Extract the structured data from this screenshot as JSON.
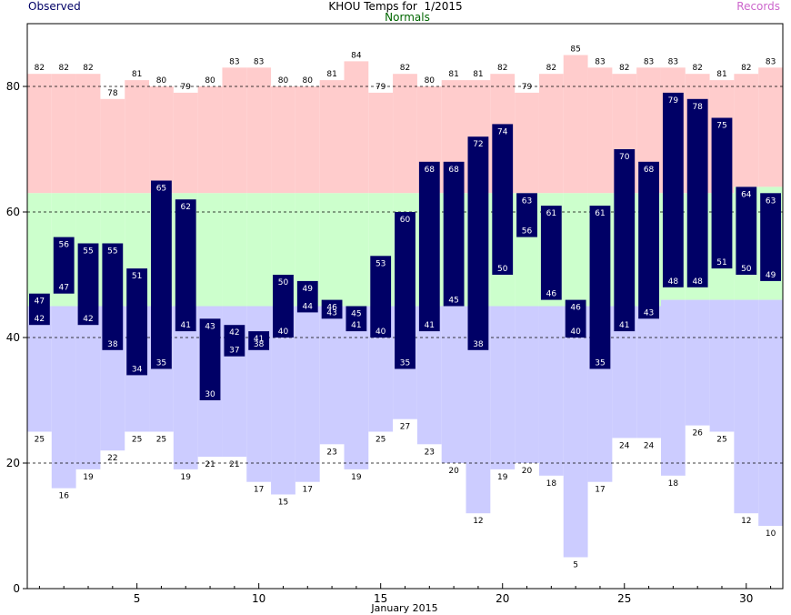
{
  "chart_data": {
    "type": "bar",
    "title": "KHOU Temps for  1/2015",
    "legend": {
      "observed": "Observed",
      "normals": "Normals",
      "records": "Records",
      "placement": "top"
    },
    "xlabel": "January 2015",
    "ylabel": "",
    "x_ticks": [
      5,
      10,
      15,
      20,
      25,
      30
    ],
    "y_ticks": [
      0,
      20,
      40,
      60,
      80
    ],
    "ylim": [
      0,
      90
    ],
    "xlim": [
      0.5,
      31.5
    ],
    "grid": "horizontal dashed at y ticks",
    "days": [
      1,
      2,
      3,
      4,
      5,
      6,
      7,
      8,
      9,
      10,
      11,
      12,
      13,
      14,
      15,
      16,
      17,
      18,
      19,
      20,
      21,
      22,
      23,
      24,
      25,
      26,
      27,
      28,
      29,
      30,
      31
    ],
    "record_high": [
      82,
      82,
      82,
      78,
      81,
      80,
      79,
      80,
      83,
      83,
      80,
      80,
      81,
      84,
      79,
      82,
      80,
      81,
      81,
      82,
      79,
      82,
      85,
      83,
      82,
      83,
      83,
      82,
      81,
      82,
      83
    ],
    "record_low": [
      25,
      16,
      19,
      22,
      25,
      25,
      19,
      21,
      21,
      17,
      15,
      17,
      23,
      19,
      25,
      27,
      23,
      20,
      12,
      19,
      20,
      18,
      5,
      17,
      24,
      24,
      18,
      26,
      25,
      12,
      10
    ],
    "normal_high": [
      63,
      63,
      63,
      63,
      63,
      63,
      63,
      63,
      63,
      63,
      63,
      63,
      63,
      63,
      63,
      63,
      63,
      63,
      63,
      63,
      63,
      63,
      63,
      63,
      63,
      63,
      63,
      63,
      63,
      64,
      64
    ],
    "normal_low": [
      45,
      45,
      45,
      45,
      45,
      45,
      45,
      45,
      45,
      45,
      45,
      45,
      45,
      45,
      45,
      45,
      45,
      45,
      45,
      45,
      45,
      45,
      45,
      45,
      45,
      45,
      46,
      46,
      46,
      46,
      46
    ],
    "observed_high": [
      47,
      56,
      55,
      55,
      51,
      65,
      62,
      43,
      42,
      41,
      50,
      49,
      46,
      45,
      53,
      60,
      68,
      68,
      72,
      74,
      63,
      61,
      46,
      61,
      70,
      68,
      79,
      78,
      75,
      64,
      63
    ],
    "observed_low": [
      42,
      47,
      42,
      38,
      34,
      35,
      41,
      30,
      37,
      38,
      40,
      44,
      43,
      41,
      40,
      35,
      41,
      45,
      38,
      50,
      56,
      46,
      40,
      35,
      41,
      43,
      48,
      48,
      51,
      50,
      49
    ],
    "colors": {
      "record_high_band": "#ffcccc",
      "normal_band": "#ccffcc",
      "record_low_band": "#ccccff",
      "observed_bar": "#000066",
      "observed_label": "#ffffff",
      "title_observed": "#000066",
      "title_normals": "#006600",
      "title_records": "#cc66cc"
    }
  }
}
